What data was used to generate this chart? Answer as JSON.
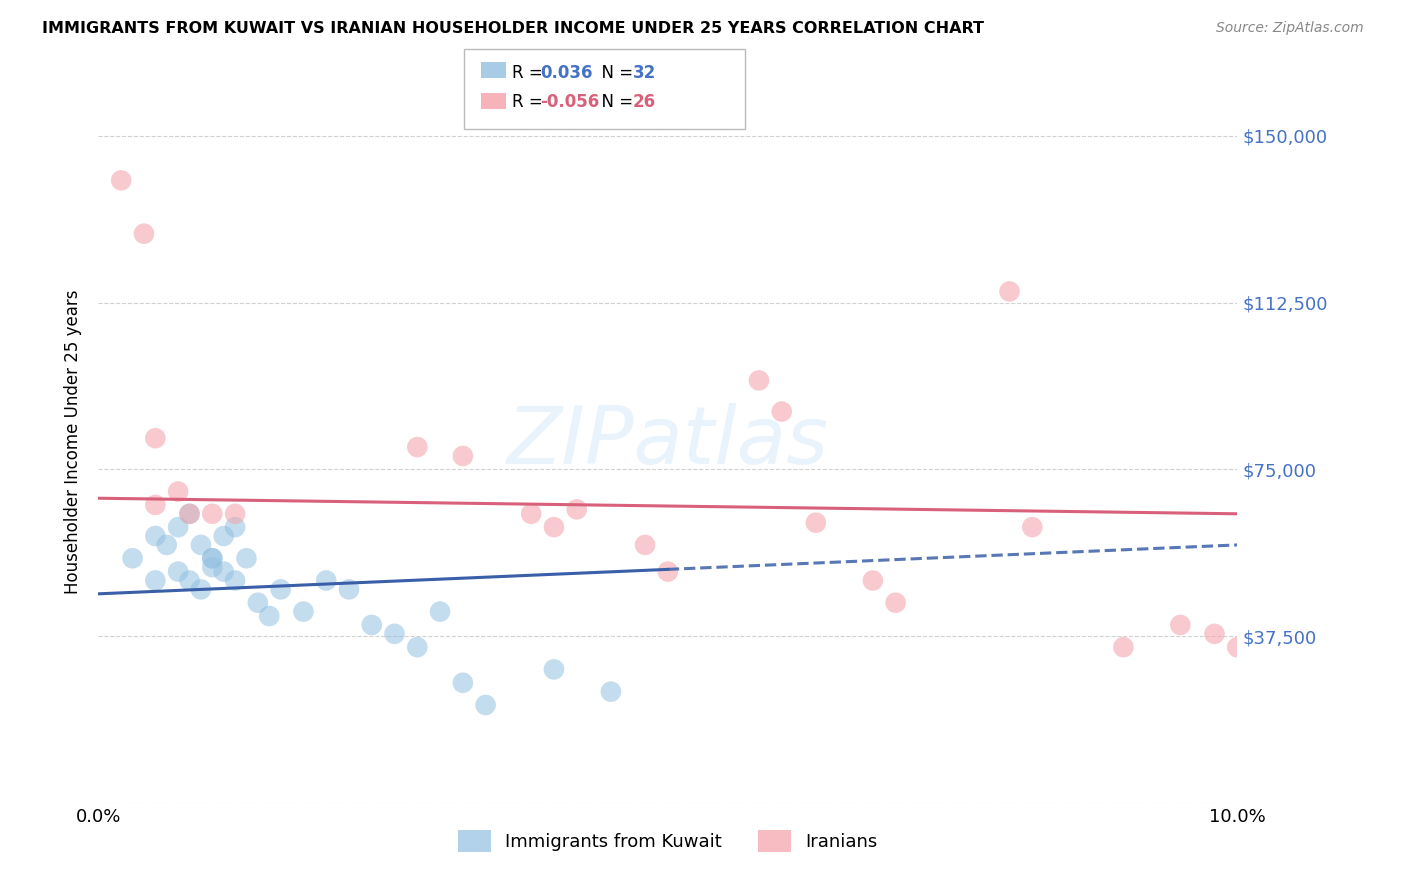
{
  "title": "IMMIGRANTS FROM KUWAIT VS IRANIAN HOUSEHOLDER INCOME UNDER 25 YEARS CORRELATION CHART",
  "source": "Source: ZipAtlas.com",
  "ylabel": "Householder Income Under 25 years",
  "xlim": [
    0.0,
    0.1
  ],
  "ylim": [
    0,
    162500
  ],
  "yticks": [
    0,
    37500,
    75000,
    112500,
    150000
  ],
  "ytick_labels": [
    "",
    "$37,500",
    "$75,000",
    "$112,500",
    "$150,000"
  ],
  "xticks": [
    0.0,
    0.02,
    0.04,
    0.06,
    0.08,
    0.1
  ],
  "xtick_labels": [
    "0.0%",
    "",
    "",
    "",
    "",
    "10.0%"
  ],
  "blue_color": "#92C0E0",
  "pink_color": "#F4A0A8",
  "blue_line_color": "#3A5FA8",
  "pink_line_color": "#D9607A",
  "blue_scatter_x": [
    0.003,
    0.005,
    0.007,
    0.008,
    0.009,
    0.01,
    0.01,
    0.011,
    0.012,
    0.013,
    0.005,
    0.006,
    0.007,
    0.008,
    0.009,
    0.01,
    0.011,
    0.012,
    0.014,
    0.015,
    0.016,
    0.018,
    0.02,
    0.022,
    0.024,
    0.026,
    0.028,
    0.03,
    0.032,
    0.034,
    0.04,
    0.045
  ],
  "blue_scatter_y": [
    55000,
    60000,
    62000,
    65000,
    58000,
    55000,
    53000,
    60000,
    62000,
    55000,
    50000,
    58000,
    52000,
    50000,
    48000,
    55000,
    52000,
    50000,
    45000,
    42000,
    48000,
    43000,
    50000,
    48000,
    40000,
    38000,
    35000,
    43000,
    27000,
    22000,
    30000,
    25000
  ],
  "pink_scatter_x": [
    0.002,
    0.004,
    0.005,
    0.005,
    0.007,
    0.008,
    0.01,
    0.012,
    0.028,
    0.032,
    0.038,
    0.04,
    0.042,
    0.048,
    0.05,
    0.058,
    0.06,
    0.063,
    0.068,
    0.07,
    0.08,
    0.082,
    0.09,
    0.095,
    0.098,
    0.1
  ],
  "pink_scatter_y": [
    140000,
    128000,
    82000,
    67000,
    70000,
    65000,
    65000,
    65000,
    80000,
    78000,
    65000,
    62000,
    66000,
    58000,
    52000,
    95000,
    88000,
    63000,
    50000,
    45000,
    115000,
    62000,
    35000,
    40000,
    38000,
    35000
  ],
  "blue_trend_y_at_0": 47000,
  "blue_trend_y_at_10pct": 58000,
  "pink_trend_y_at_0": 68500,
  "pink_trend_y_at_10pct": 65000
}
